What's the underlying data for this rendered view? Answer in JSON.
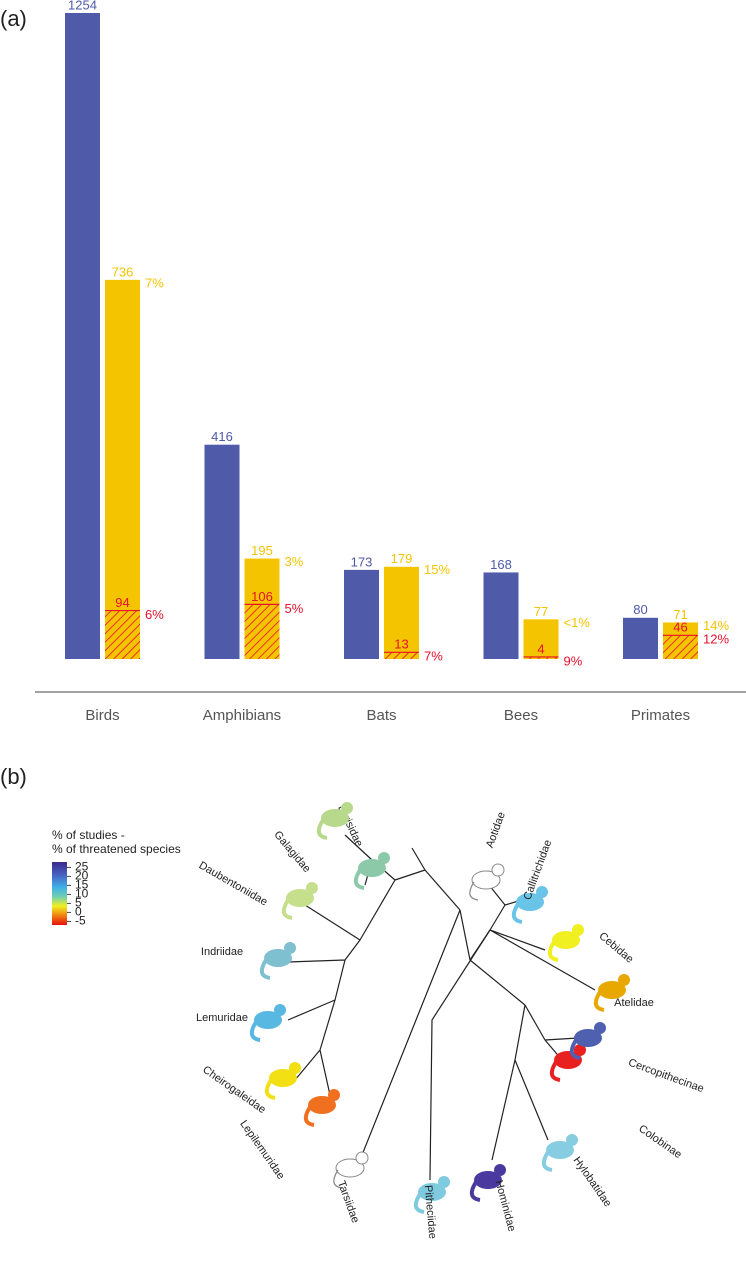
{
  "panel_labels": [
    "(a)",
    "(b)"
  ],
  "chart_data": {
    "type": "bar",
    "categories": [
      "Birds",
      "Amphibians",
      "Bats",
      "Bees",
      "Primates"
    ],
    "series": [
      {
        "color": "#4f5aa8",
        "values": [
          1254,
          416,
          173,
          168,
          80
        ]
      },
      {
        "color": "#f5c400",
        "values": [
          736,
          195,
          179,
          77,
          71
        ],
        "annotations": [
          "7%",
          "3%",
          "15%",
          "<1%",
          "14%"
        ]
      },
      {
        "color": "#e8102a",
        "values": [
          94,
          106,
          13,
          4,
          46
        ],
        "annotations": [
          "6%",
          "5%",
          "7%",
          "9%",
          "12%"
        ],
        "hatched": true
      }
    ]
  },
  "diagram": {
    "legend_title": [
      "% of studies -",
      "% of threatened species"
    ],
    "colorbar": {
      "lim": [
        -7,
        28
      ],
      "ticks": [
        25,
        20,
        15,
        10,
        5,
        0,
        -5
      ]
    },
    "nodes": [
      {
        "label": "Lorisidae",
        "color": "#8cc9a8"
      },
      {
        "label": "Galagidae",
        "color": "#b8d98c"
      },
      {
        "label": "Daubentoniidae",
        "color": "#c6df8c"
      },
      {
        "label": "Indriidae",
        "color": "#7ec0d0"
      },
      {
        "label": "Lemuridae",
        "color": "#58b8e2"
      },
      {
        "label": "Cheirogaleidae",
        "color": "#f2e014"
      },
      {
        "label": "Lepilemuridae",
        "color": "#f07020"
      },
      {
        "label": "Tarsiidae",
        "color": "#ffffff"
      },
      {
        "label": "Pitheciidae",
        "color": "#7ecbe0"
      },
      {
        "label": "Hominidae",
        "color": "#4a3aa0"
      },
      {
        "label": "Hylobatidae",
        "color": "#86cde2"
      },
      {
        "label": "Colobinae",
        "color": "#e82020"
      },
      {
        "label": "Cercopithecinae",
        "color": "#5060b0"
      },
      {
        "label": "Atelidae",
        "color": "#e8a800"
      },
      {
        "label": "Cebidae",
        "color": "#f0ef20"
      },
      {
        "label": "Callitrichidae",
        "color": "#6ac4e8"
      },
      {
        "label": "Aotidae",
        "color": "#ffffff"
      }
    ]
  }
}
